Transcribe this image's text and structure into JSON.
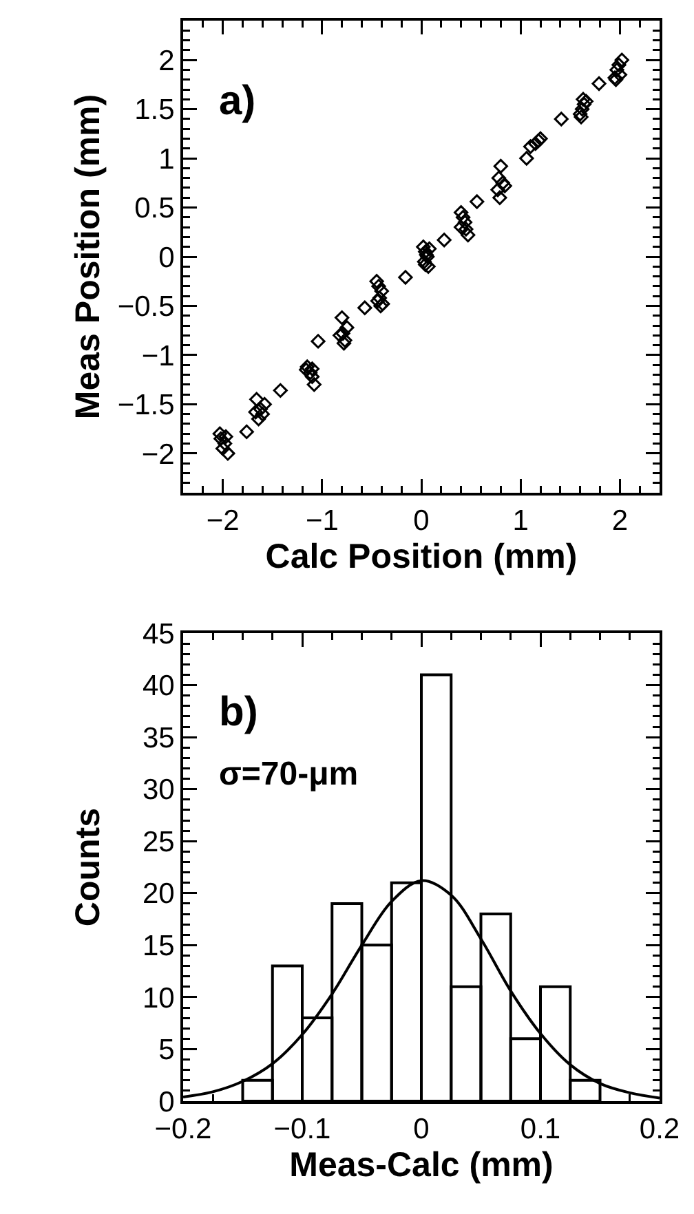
{
  "chart_data": [
    {
      "type": "scatter",
      "xlabel": "Calc Position (mm)",
      "ylabel": "Meas Position (mm)",
      "annotations": [
        "a)"
      ],
      "marker": "diamond",
      "color": "#000000",
      "x": [
        -2.02,
        -1.98,
        -2.0,
        -1.95,
        -2.03,
        -1.97,
        -1.76,
        -1.66,
        -1.62,
        -1.6,
        -1.64,
        -1.58,
        -1.67,
        -1.42,
        -1.15,
        -1.12,
        -1.1,
        -1.08,
        -1.16,
        -1.1,
        -1.04,
        -0.8,
        -0.79,
        -0.77,
        -0.75,
        -0.82,
        -0.78,
        -0.57,
        -0.45,
        -0.43,
        -0.4,
        -0.42,
        -0.39,
        -0.44,
        -0.41,
        -0.16,
        0.02,
        0.04,
        0.06,
        0.03,
        0.07,
        0.05,
        0.08,
        0.04,
        0.23,
        0.4,
        0.42,
        0.44,
        0.4,
        0.45,
        0.47,
        0.56,
        0.8,
        0.78,
        0.82,
        0.79,
        0.84,
        0.77,
        1.06,
        1.1,
        1.15,
        1.18,
        1.2,
        1.41,
        1.6,
        1.62,
        1.64,
        1.66,
        1.61,
        1.63,
        1.79,
        1.95,
        1.97,
        1.99,
        2.02,
        2.0,
        1.96
      ],
      "values": [
        -1.85,
        -1.9,
        -1.95,
        -2.0,
        -1.8,
        -1.83,
        -1.78,
        -1.45,
        -1.55,
        -1.6,
        -1.65,
        -1.5,
        -1.58,
        -1.36,
        -1.12,
        -1.18,
        -1.22,
        -1.3,
        -1.15,
        -1.14,
        -0.86,
        -0.62,
        -0.78,
        -0.85,
        -0.72,
        -0.8,
        -0.88,
        -0.52,
        -0.25,
        -0.3,
        -0.35,
        -0.42,
        -0.48,
        -0.45,
        -0.5,
        -0.21,
        0.1,
        0.05,
        0.0,
        -0.05,
        -0.1,
        0.02,
        0.08,
        -0.08,
        0.17,
        0.45,
        0.4,
        0.35,
        0.3,
        0.28,
        0.22,
        0.56,
        0.92,
        0.8,
        0.75,
        0.6,
        0.72,
        0.68,
        1.0,
        1.12,
        1.15,
        1.18,
        1.2,
        1.4,
        1.45,
        1.5,
        1.55,
        1.58,
        1.42,
        1.6,
        1.76,
        1.82,
        1.9,
        1.95,
        2.0,
        1.85,
        1.8
      ],
      "xlim": [
        -2.4,
        2.4
      ],
      "xticks": [
        -2,
        -1,
        0,
        1,
        2
      ],
      "ylim": [
        -2.4,
        2.4
      ],
      "yticks": [
        -2,
        -1.5,
        -1,
        -0.5,
        0,
        0.5,
        1,
        1.5,
        2
      ]
    },
    {
      "type": "histogram",
      "xlabel": "Meas-Calc (mm)",
      "ylabel": "Counts",
      "annotations": [
        "b)",
        "σ=70-μm"
      ],
      "bins": [
        -0.15,
        -0.125,
        -0.1,
        -0.075,
        -0.05,
        -0.025,
        0,
        0.025,
        0.05,
        0.075,
        0.1,
        0.125,
        0.15
      ],
      "values": [
        2,
        13,
        8,
        19,
        15,
        21,
        41,
        11,
        18,
        6,
        11,
        2
      ],
      "series": [
        {
          "type": "line",
          "color": "#000000",
          "x": [
            -0.2,
            -0.175,
            -0.15,
            -0.125,
            -0.1,
            -0.075,
            -0.05,
            -0.025,
            0,
            0.025,
            0.05,
            0.075,
            0.1,
            0.125,
            0.15,
            0.175,
            0.2
          ],
          "values": [
            0.4,
            0.9,
            1.9,
            3.6,
            6.4,
            10.3,
            15,
            19.2,
            21.2,
            19.8,
            15.6,
            10.6,
            6.5,
            3.5,
            1.7,
            0.8,
            0.3
          ]
        }
      ],
      "xlim": [
        -0.2,
        0.2
      ],
      "xticks": [
        -0.2,
        -0.1,
        0,
        0.1,
        0.2
      ],
      "ylim": [
        0,
        45
      ],
      "yticks": [
        0,
        5,
        10,
        15,
        20,
        25,
        30,
        35,
        40,
        45
      ]
    }
  ]
}
